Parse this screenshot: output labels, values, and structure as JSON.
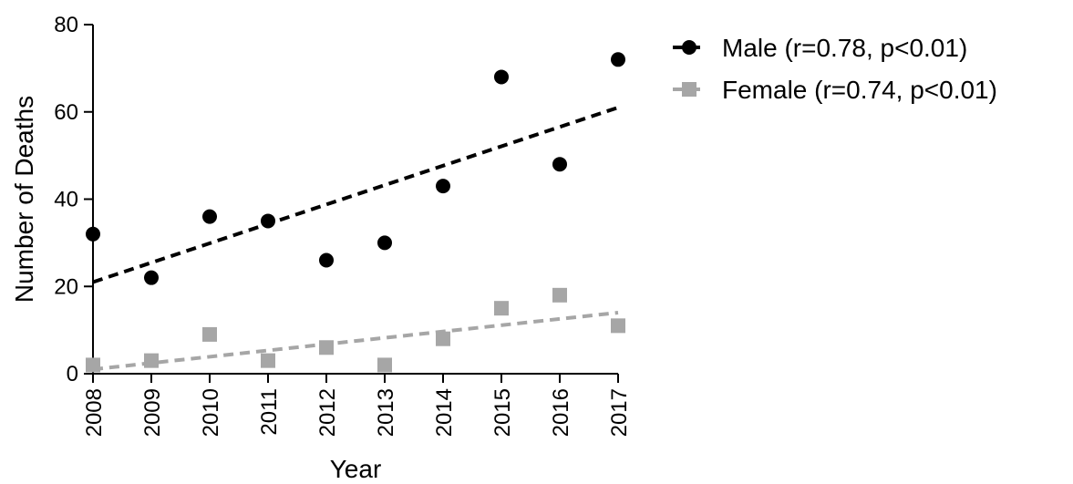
{
  "chart_data": {
    "type": "scatter",
    "title": "",
    "xlabel": "Year",
    "ylabel": "Number of Deaths",
    "x": [
      2008,
      2009,
      2010,
      2011,
      2012,
      2013,
      2014,
      2015,
      2016,
      2017
    ],
    "x_tick_labels": [
      "2008",
      "2009",
      "2010",
      "2011",
      "2012",
      "2013",
      "2014",
      "2015",
      "2016",
      "2017"
    ],
    "ylim": [
      0,
      80
    ],
    "y_ticks": [
      0,
      20,
      40,
      60,
      80
    ],
    "y_tick_labels": [
      "0",
      "20",
      "40",
      "60",
      "80"
    ],
    "grid": false,
    "legend_position": "top-right",
    "series": [
      {
        "name": "Male (r=0.78, p<0.01)",
        "marker": "circle",
        "color": "#000000",
        "values": [
          32,
          22,
          36,
          35,
          26,
          30,
          43,
          68,
          48,
          72
        ],
        "trendline": {
          "style": "dashed",
          "start": [
            2008,
            21
          ],
          "end": [
            2017,
            61
          ]
        }
      },
      {
        "name": "Female (r=0.74, p<0.01)",
        "marker": "square",
        "color": "#a6a6a6",
        "values": [
          2,
          3,
          9,
          3,
          6,
          2,
          8,
          15,
          18,
          11
        ],
        "trendline": {
          "style": "dashed",
          "start": [
            2008,
            1
          ],
          "end": [
            2017,
            14
          ]
        }
      }
    ]
  }
}
